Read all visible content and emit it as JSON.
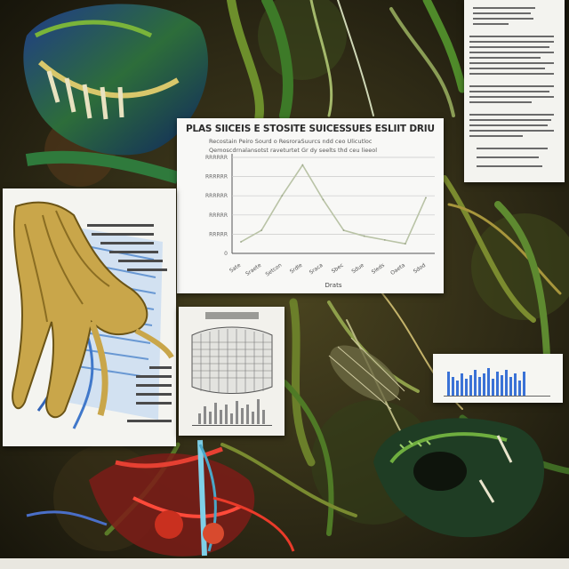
{
  "collage": {
    "chart_card": {
      "title": "PLAS SIICEIS E STOSITE SUICESSUES ESLIIT DRIUS GE ALI",
      "subtitle_lines": [
        "Recostain Peiro   Sourd o ResroraSuurcs ndd ceo Ulicutloc",
        "Qemoscdrnalansotst raveturtet Gr dy seelts thd ceu lieeol"
      ]
    },
    "claw_card": {},
    "notes_card": {},
    "box_card": {},
    "bars_card": {}
  },
  "chart_data": {
    "type": "line",
    "title": "PLAS SIICEIS E STOSITE SUICESSUES ESLIIT DRIUS GE ALI",
    "xlabel": "Drats",
    "ylabel": "",
    "categories": [
      "Sate",
      "Sraete",
      "Setcon",
      "Srdle",
      "Sraca",
      "Sbec",
      "Sdue",
      "Sleds",
      "Oaeta",
      "Sdod"
    ],
    "y_tick_labels": [
      "RRRRRR",
      "RRRRRR",
      "RRRRRR",
      "RRRRR",
      "RRRRR",
      "0"
    ],
    "ylim": [
      0,
      50000
    ],
    "grid": true,
    "series": [
      {
        "values": [
          6000,
          12000,
          30000,
          46000,
          28000,
          12000,
          9000,
          7000,
          5000,
          29000
        ]
      }
    ]
  }
}
